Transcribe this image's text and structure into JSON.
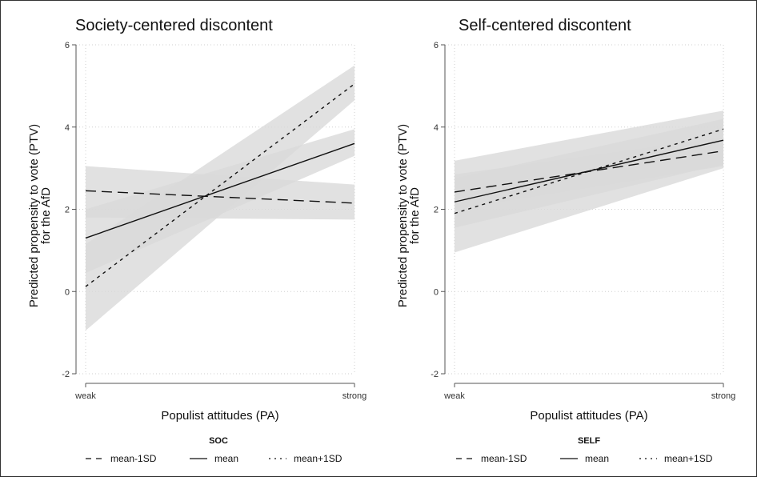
{
  "chart_data": [
    {
      "type": "line",
      "title": "Society-centered discontent",
      "xlabel": "Populist attitudes (PA)",
      "ylabel": [
        "Predicted propensity to vote (PTV)",
        "for the AfD"
      ],
      "x": [
        "weak",
        "strong"
      ],
      "ylim": [
        -2,
        6
      ],
      "yticks": [
        -2,
        0,
        2,
        4,
        6
      ],
      "grid": true,
      "legend_title": "SOC",
      "legend_position": "bottom",
      "series": [
        {
          "name": "mean-1SD",
          "dash": "dashed",
          "values": [
            2.45,
            2.15
          ],
          "ci_lower": [
            1.8,
            1.75
          ],
          "ci_upper": [
            3.05,
            2.6
          ]
        },
        {
          "name": "mean",
          "dash": "solid",
          "values": [
            1.3,
            3.6
          ],
          "ci_lower": [
            0.45,
            3.3
          ],
          "ci_upper": [
            2.0,
            3.95
          ]
        },
        {
          "name": "mean+1SD",
          "dash": "dotted",
          "values": [
            0.12,
            5.05
          ],
          "ci_lower": [
            -0.95,
            4.65
          ],
          "ci_upper": [
            1.15,
            5.5
          ]
        }
      ]
    },
    {
      "type": "line",
      "title": "Self-centered discontent",
      "xlabel": "Populist attitudes (PA)",
      "ylabel": [
        "Predicted propensity to vote (PTV)",
        "for the AfD"
      ],
      "x": [
        "weak",
        "strong"
      ],
      "ylim": [
        -2,
        6
      ],
      "yticks": [
        -2,
        0,
        2,
        4,
        6
      ],
      "grid": true,
      "legend_title": "SELF",
      "legend_position": "bottom",
      "series": [
        {
          "name": "mean-1SD",
          "dash": "dashed",
          "values": [
            2.42,
            3.42
          ],
          "ci_lower": [
            2.0,
            3.05
          ],
          "ci_upper": [
            2.85,
            3.75
          ]
        },
        {
          "name": "mean",
          "dash": "solid",
          "values": [
            2.18,
            3.68
          ],
          "ci_lower": [
            1.55,
            3.1
          ],
          "ci_upper": [
            2.75,
            4.2
          ]
        },
        {
          "name": "mean+1SD",
          "dash": "dotted",
          "values": [
            1.9,
            3.95
          ],
          "ci_lower": [
            0.95,
            3.0
          ],
          "ci_upper": [
            3.18,
            4.4
          ]
        }
      ]
    }
  ]
}
